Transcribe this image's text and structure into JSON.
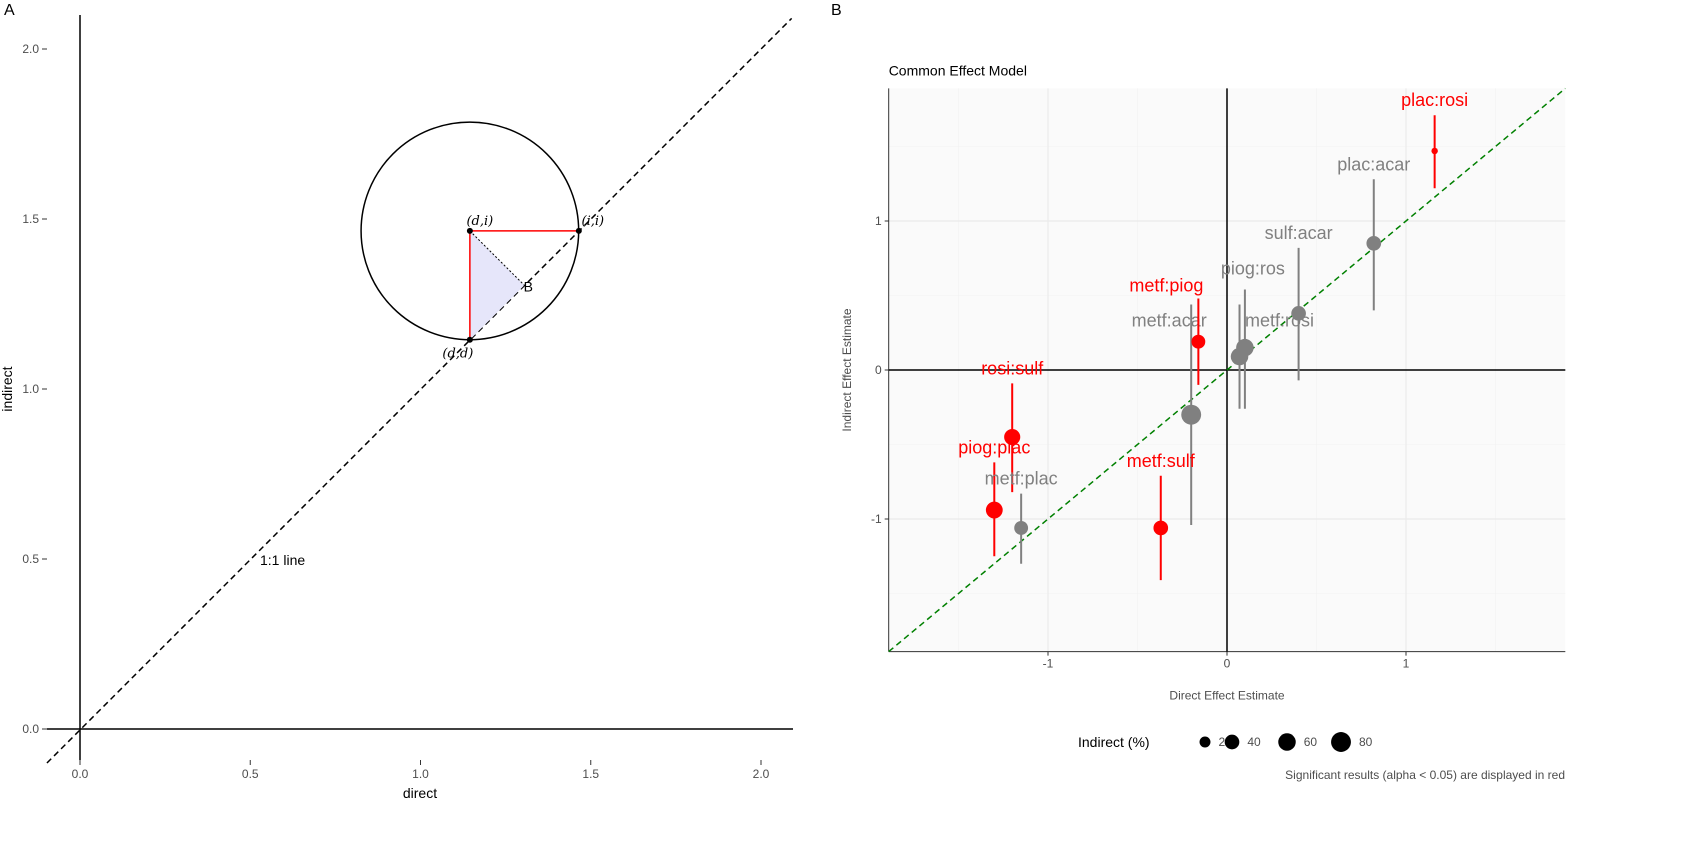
{
  "panels": {
    "a_label": "A",
    "b_label": "B"
  },
  "chart_data": [
    {
      "type": "line",
      "panel": "A",
      "xlabel": "direct",
      "ylabel": "indirect",
      "xlim": [
        -0.1,
        2.09
      ],
      "ylim": [
        -0.09,
        2.1
      ],
      "xticks": [
        0.0,
        0.5,
        1.0,
        1.5,
        2.0
      ],
      "yticks": [
        0.0,
        0.5,
        1.0,
        1.5,
        2.0
      ],
      "xtick_labels": [
        "0.0",
        "0.5",
        "1.0",
        "1.5",
        "2.0"
      ],
      "ytick_labels": [
        "0.0",
        "0.5",
        "1.0",
        "1.5",
        "2.0"
      ],
      "reference_line": {
        "label": "1:1 line",
        "slope": 1,
        "intercept": 0,
        "style": "dashed"
      },
      "grid": false,
      "points": [
        {
          "label": "(d,i)",
          "x": 1.145,
          "y": 1.465
        },
        {
          "label": "(i,i)",
          "x": 1.465,
          "y": 1.465
        },
        {
          "label": "(d,d)",
          "x": 1.145,
          "y": 1.145
        },
        {
          "label": "B",
          "x": 1.305,
          "y": 1.305
        }
      ],
      "circle": {
        "center": [
          1.145,
          1.465
        ],
        "radius": 0.32
      },
      "colors": {
        "segments": "#ff0000",
        "triangle_fill": "#e6e6fa"
      }
    },
    {
      "type": "scatter",
      "panel": "B",
      "title": "Common Effect Model",
      "xlabel": "Direct Effect Estimate",
      "ylabel": "Indirect Effect Estimate",
      "xlim": [
        -1.89,
        1.89
      ],
      "ylim": [
        -1.89,
        1.89
      ],
      "xticks": [
        -1,
        0,
        1
      ],
      "yticks": [
        -1,
        0,
        1
      ],
      "xtick_labels": [
        "-1",
        "0",
        "1"
      ],
      "ytick_labels": [
        "-1",
        "0",
        "1"
      ],
      "grid": true,
      "reference_line": {
        "slope": 1,
        "intercept": 0,
        "style": "dashed",
        "color": "#008000"
      },
      "colors": {
        "significant": "#ff0000",
        "non_significant": "#808080"
      },
      "points": [
        {
          "label": "plac:rosi",
          "x": 1.16,
          "y": 1.47,
          "ci": [
            1.22,
            1.71
          ],
          "indirect_pct": 5,
          "significant": true
        },
        {
          "label": "plac:acar",
          "x": 0.82,
          "y": 0.85,
          "ci": [
            0.4,
            1.28
          ],
          "indirect_pct": 40,
          "significant": false
        },
        {
          "label": "sulf:acar",
          "x": 0.4,
          "y": 0.38,
          "ci": [
            -0.07,
            0.82
          ],
          "indirect_pct": 40,
          "significant": false
        },
        {
          "label": "piog:ros",
          "x": 0.1,
          "y": 0.15,
          "ci": [
            -0.26,
            0.54
          ],
          "indirect_pct": 60,
          "significant": false
        },
        {
          "label": "metf:rosi",
          "x": 0.07,
          "y": 0.09,
          "ci": [
            -0.26,
            0.44
          ],
          "indirect_pct": 60,
          "significant": false
        },
        {
          "label": "metf:acar",
          "x": -0.2,
          "y": -0.3,
          "ci": [
            -1.04,
            0.44
          ],
          "indirect_pct": 80,
          "significant": false
        },
        {
          "label": "metf:piog",
          "x": -0.16,
          "y": 0.19,
          "ci": [
            -0.1,
            0.48
          ],
          "indirect_pct": 35,
          "significant": true
        },
        {
          "label": "rosi:sulf",
          "x": -1.2,
          "y": -0.45,
          "ci": [
            -0.82,
            -0.09
          ],
          "indirect_pct": 50,
          "significant": true
        },
        {
          "label": "piog:plac",
          "x": -1.3,
          "y": -0.94,
          "ci": [
            -1.25,
            -0.62
          ],
          "indirect_pct": 55,
          "significant": true
        },
        {
          "label": "metf:plac",
          "x": -1.15,
          "y": -1.06,
          "ci": [
            -1.3,
            -0.83
          ],
          "indirect_pct": 35,
          "significant": false
        },
        {
          "label": "metf:sulf",
          "x": -0.37,
          "y": -1.06,
          "ci": [
            -1.41,
            -0.71
          ],
          "indirect_pct": 40,
          "significant": true
        }
      ],
      "legend": {
        "title": "Indirect (%)",
        "values": [
          20,
          40,
          60,
          80
        ],
        "labels": [
          "20",
          "40",
          "60",
          "80"
        ],
        "placement": "bottom"
      },
      "caption": "Significant results (alpha < 0.05) are displayed in red"
    }
  ]
}
